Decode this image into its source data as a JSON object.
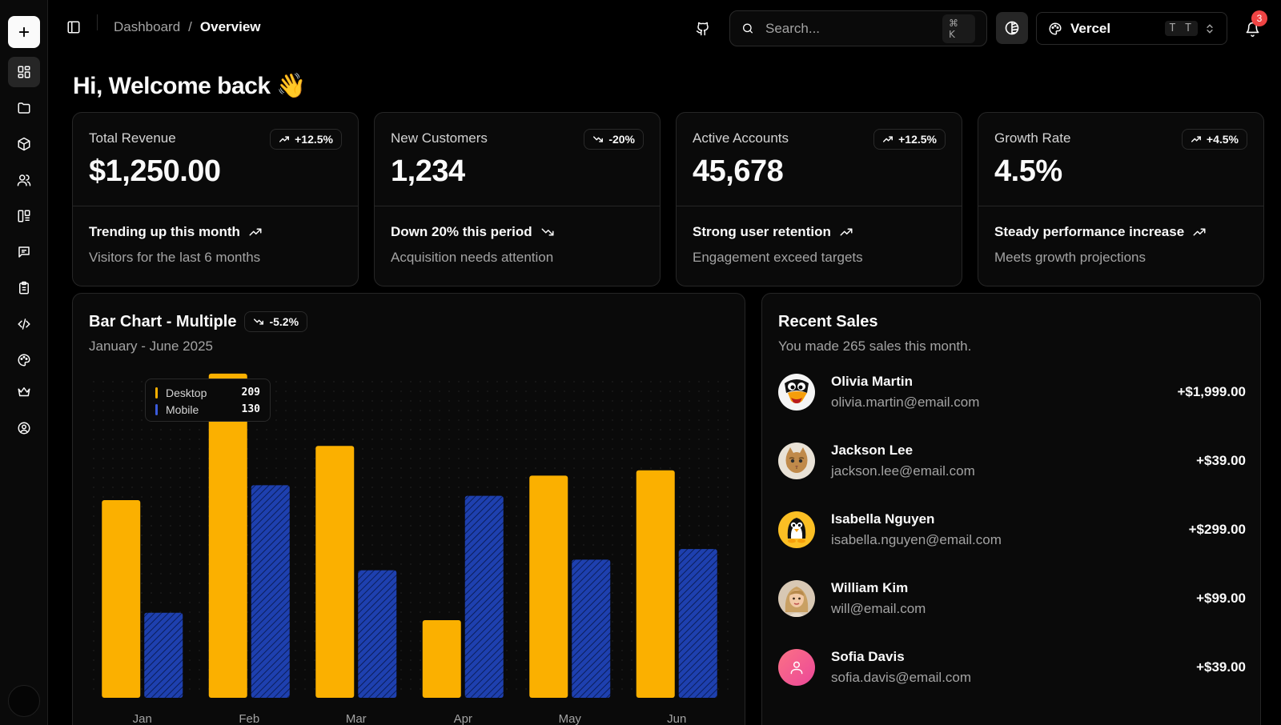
{
  "header": {
    "breadcrumb": [
      "Dashboard",
      "Overview"
    ],
    "breadcrumb_separator": "/",
    "search_placeholder": "Search...",
    "search_shortcut": "⌘ K",
    "team_name": "Vercel",
    "team_initials": "T T",
    "notification_count": "3"
  },
  "sidebar": {
    "items": [
      {
        "icon": "dashboard-icon",
        "active": true
      },
      {
        "icon": "folder-icon"
      },
      {
        "icon": "box-icon"
      },
      {
        "icon": "users-icon"
      },
      {
        "icon": "kanban-icon"
      },
      {
        "icon": "chat-icon"
      },
      {
        "icon": "clipboard-icon"
      },
      {
        "icon": "code-icon"
      },
      {
        "icon": "palette-icon"
      },
      {
        "icon": "crown-icon"
      },
      {
        "icon": "user-circle-icon"
      }
    ]
  },
  "welcome": "Hi, Welcome back 👋",
  "kpis": [
    {
      "label": "Total Revenue",
      "value": "$1,250.00",
      "badge": "+12.5%",
      "trend_dir": "up",
      "trend": "Trending up this month",
      "desc": "Visitors for the last 6 months"
    },
    {
      "label": "New Customers",
      "value": "1,234",
      "badge": "-20%",
      "trend_dir": "down",
      "trend": "Down 20% this period",
      "desc": "Acquisition needs attention"
    },
    {
      "label": "Active Accounts",
      "value": "45,678",
      "badge": "+12.5%",
      "trend_dir": "up",
      "trend": "Strong user retention",
      "desc": "Engagement exceed targets"
    },
    {
      "label": "Growth Rate",
      "value": "4.5%",
      "badge": "+4.5%",
      "trend_dir": "up",
      "trend": "Steady performance increase",
      "desc": "Meets growth projections"
    }
  ],
  "chart": {
    "title": "Bar Chart - Multiple",
    "badge": "-5.2%",
    "subtitle": "January - June 2025",
    "tooltip": {
      "rows": [
        {
          "label": "Desktop",
          "value": "209"
        },
        {
          "label": "Mobile",
          "value": "130"
        }
      ]
    }
  },
  "chart_data": {
    "type": "bar",
    "title": "Bar Chart - Multiple",
    "subtitle": "January - June 2025",
    "categories": [
      "Jan",
      "Feb",
      "Mar",
      "Apr",
      "May",
      "Jun"
    ],
    "series": [
      {
        "name": "Desktop",
        "values": [
          186,
          305,
          237,
          73,
          209,
          214
        ],
        "color": "#fbb000"
      },
      {
        "name": "Mobile",
        "values": [
          80,
          200,
          120,
          190,
          130,
          140
        ],
        "color": "#1e40af"
      }
    ],
    "ylim": [
      0,
      320
    ],
    "grid": "dots",
    "legend": "none"
  },
  "sales": {
    "title": "Recent Sales",
    "subtitle": "You made 265 sales this month.",
    "items": [
      {
        "name": "Olivia Martin",
        "email": "olivia.martin@email.com",
        "amount": "+$1,999.00",
        "avatar": "bird"
      },
      {
        "name": "Jackson Lee",
        "email": "jackson.lee@email.com",
        "amount": "+$39.00",
        "avatar": "cat"
      },
      {
        "name": "Isabella Nguyen",
        "email": "isabella.nguyen@email.com",
        "amount": "+$299.00",
        "avatar": "penguin"
      },
      {
        "name": "William Kim",
        "email": "will@email.com",
        "amount": "+$99.00",
        "avatar": "woman"
      },
      {
        "name": "Sofia Davis",
        "email": "sofia.davis@email.com",
        "amount": "+$39.00",
        "avatar": "user"
      }
    ]
  },
  "colors": {
    "desktop": "#fbb000",
    "mobile": "#1e40af",
    "badge": "#ef4444"
  }
}
